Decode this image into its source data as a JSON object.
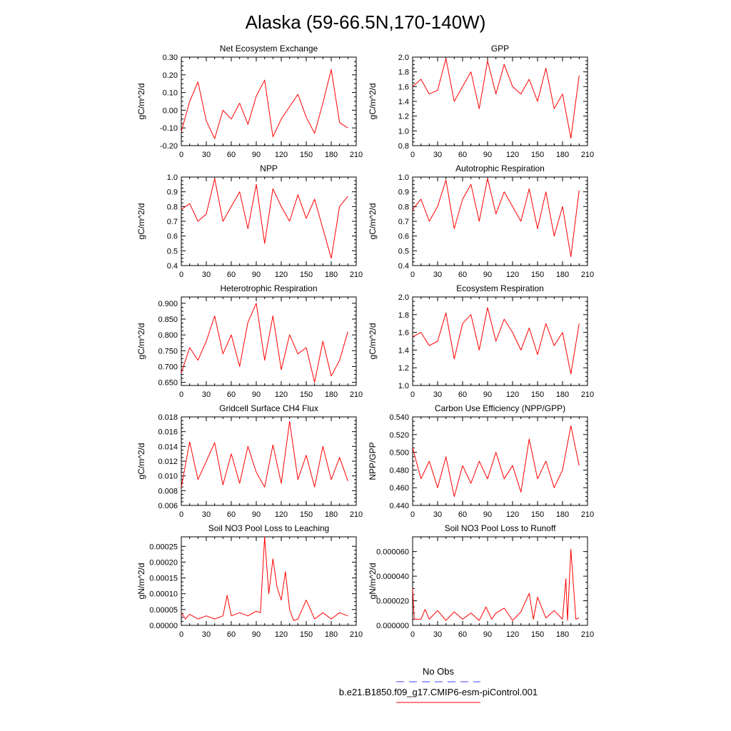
{
  "page_title": "Alaska (59-66.5N,170-140W)",
  "colors": {
    "model": "#ff0000",
    "obs": "#4040ff",
    "axis": "#000000"
  },
  "legend": {
    "obs_label": "No Obs",
    "model_label": "b.e21.B1850.f09_g17.CMIP6-esm-piControl.001"
  },
  "chart_data": [
    {
      "id": "nee",
      "type": "line",
      "title": "Net Ecosystem Exchange",
      "ylabel": "gC/m^2/d",
      "xlim": [
        0,
        210
      ],
      "xticks": [
        "0",
        "30",
        "60",
        "90",
        "120",
        "150",
        "180",
        "210"
      ],
      "ylim": [
        -0.2,
        0.3
      ],
      "yticks": [
        "-0.20",
        "-0.10",
        "0.00",
        "0.10",
        "0.20",
        "0.30"
      ],
      "x": [
        0,
        10,
        20,
        30,
        40,
        50,
        60,
        70,
        80,
        90,
        100,
        110,
        120,
        130,
        140,
        150,
        160,
        170,
        180,
        190,
        200
      ],
      "series": [
        {
          "values": [
            -0.12,
            0.05,
            0.16,
            -0.06,
            -0.16,
            0.0,
            -0.05,
            0.04,
            -0.08,
            0.08,
            0.17,
            -0.15,
            -0.05,
            0.02,
            0.09,
            -0.04,
            -0.13,
            0.04,
            0.23,
            -0.07,
            -0.1
          ]
        }
      ]
    },
    {
      "id": "gpp",
      "type": "line",
      "title": "GPP",
      "ylabel": "gC/m^2/d",
      "xlim": [
        0,
        210
      ],
      "xticks": [
        "0",
        "30",
        "60",
        "90",
        "120",
        "150",
        "180",
        "210"
      ],
      "ylim": [
        0.8,
        2.0
      ],
      "yticks": [
        "0.8",
        "1.0",
        "1.2",
        "1.4",
        "1.6",
        "1.8",
        "2.0"
      ],
      "x": [
        0,
        10,
        20,
        30,
        40,
        50,
        60,
        70,
        80,
        90,
        100,
        110,
        120,
        130,
        140,
        150,
        160,
        170,
        180,
        190,
        200
      ],
      "series": [
        {
          "values": [
            1.6,
            1.7,
            1.5,
            1.55,
            1.98,
            1.4,
            1.6,
            1.8,
            1.3,
            1.95,
            1.5,
            1.9,
            1.6,
            1.5,
            1.7,
            1.4,
            1.85,
            1.3,
            1.5,
            0.9,
            1.75
          ]
        }
      ]
    },
    {
      "id": "npp",
      "type": "line",
      "title": "NPP",
      "ylabel": "gC/m^2/d",
      "xlim": [
        0,
        210
      ],
      "xticks": [
        "0",
        "30",
        "60",
        "90",
        "120",
        "150",
        "180",
        "210"
      ],
      "ylim": [
        0.4,
        1.0
      ],
      "yticks": [
        "0.4",
        "0.5",
        "0.6",
        "0.7",
        "0.8",
        "0.9",
        "1.0"
      ],
      "x": [
        0,
        10,
        20,
        30,
        40,
        50,
        60,
        70,
        80,
        90,
        100,
        110,
        120,
        130,
        140,
        150,
        160,
        170,
        180,
        190,
        200
      ],
      "series": [
        {
          "values": [
            0.78,
            0.82,
            0.7,
            0.75,
            0.99,
            0.7,
            0.8,
            0.9,
            0.65,
            0.95,
            0.55,
            0.92,
            0.8,
            0.7,
            0.88,
            0.72,
            0.85,
            0.65,
            0.45,
            0.8,
            0.87
          ]
        }
      ]
    },
    {
      "id": "ar",
      "type": "line",
      "title": "Autotrophic Respiration",
      "ylabel": "gC/m^2/d",
      "xlim": [
        0,
        210
      ],
      "xticks": [
        "0",
        "30",
        "60",
        "90",
        "120",
        "150",
        "180",
        "210"
      ],
      "ylim": [
        0.4,
        1.0
      ],
      "yticks": [
        "0.4",
        "0.5",
        "0.6",
        "0.7",
        "0.8",
        "0.9",
        "1.0"
      ],
      "x": [
        0,
        10,
        20,
        30,
        40,
        50,
        60,
        70,
        80,
        90,
        100,
        110,
        120,
        130,
        140,
        150,
        160,
        170,
        180,
        190,
        200
      ],
      "series": [
        {
          "values": [
            0.78,
            0.85,
            0.7,
            0.8,
            0.98,
            0.65,
            0.85,
            0.95,
            0.7,
            0.99,
            0.75,
            0.9,
            0.8,
            0.7,
            0.92,
            0.65,
            0.9,
            0.6,
            0.8,
            0.46,
            0.91
          ]
        }
      ]
    },
    {
      "id": "hr",
      "type": "line",
      "title": "Heterotrophic Respiration",
      "ylabel": "gC/m^2/d",
      "xlim": [
        0,
        210
      ],
      "xticks": [
        "0",
        "30",
        "60",
        "90",
        "120",
        "150",
        "180",
        "210"
      ],
      "ylim": [
        0.64,
        0.92
      ],
      "yticks": [
        "0.650",
        "0.700",
        "0.750",
        "0.800",
        "0.850",
        "0.900"
      ],
      "x": [
        0,
        10,
        20,
        30,
        40,
        50,
        60,
        70,
        80,
        90,
        100,
        110,
        120,
        130,
        140,
        150,
        160,
        170,
        180,
        190,
        200
      ],
      "series": [
        {
          "values": [
            0.68,
            0.76,
            0.72,
            0.78,
            0.86,
            0.74,
            0.8,
            0.7,
            0.84,
            0.9,
            0.72,
            0.86,
            0.69,
            0.8,
            0.74,
            0.76,
            0.65,
            0.78,
            0.67,
            0.72,
            0.81
          ]
        }
      ]
    },
    {
      "id": "er",
      "type": "line",
      "title": "Ecosystem Respiration",
      "ylabel": "gC/m^2/d",
      "xlim": [
        0,
        210
      ],
      "xticks": [
        "0",
        "30",
        "60",
        "90",
        "120",
        "150",
        "180",
        "210"
      ],
      "ylim": [
        1.0,
        2.0
      ],
      "yticks": [
        "1.0",
        "1.2",
        "1.4",
        "1.6",
        "1.8",
        "2.0"
      ],
      "x": [
        0,
        10,
        20,
        30,
        40,
        50,
        60,
        70,
        80,
        90,
        100,
        110,
        120,
        130,
        140,
        150,
        160,
        170,
        180,
        190,
        200
      ],
      "series": [
        {
          "values": [
            1.55,
            1.6,
            1.45,
            1.5,
            1.82,
            1.3,
            1.7,
            1.8,
            1.4,
            1.88,
            1.5,
            1.75,
            1.6,
            1.4,
            1.65,
            1.35,
            1.7,
            1.45,
            1.6,
            1.13,
            1.7
          ]
        }
      ]
    },
    {
      "id": "ch4",
      "type": "line",
      "title": "Gridcell Surface CH4 Flux",
      "ylabel": "gC/m^2/d",
      "xlim": [
        0,
        210
      ],
      "xticks": [
        "0",
        "30",
        "60",
        "90",
        "120",
        "150",
        "180",
        "210"
      ],
      "ylim": [
        0.006,
        0.018
      ],
      "yticks": [
        "0.006",
        "0.008",
        "0.010",
        "0.012",
        "0.014",
        "0.016",
        "0.018"
      ],
      "x": [
        0,
        10,
        20,
        30,
        40,
        50,
        60,
        70,
        80,
        90,
        100,
        110,
        120,
        130,
        140,
        150,
        160,
        170,
        180,
        190,
        200
      ],
      "series": [
        {
          "values": [
            0.0085,
            0.0146,
            0.0095,
            0.012,
            0.0145,
            0.0088,
            0.013,
            0.009,
            0.014,
            0.0105,
            0.0085,
            0.0142,
            0.009,
            0.0174,
            0.0095,
            0.0128,
            0.0085,
            0.014,
            0.0095,
            0.0125,
            0.0093
          ]
        }
      ]
    },
    {
      "id": "cue",
      "type": "line",
      "title": "Carbon Use Efficiency (NPP/GPP)",
      "ylabel": "NPP/GPP",
      "xlim": [
        0,
        210
      ],
      "xticks": [
        "0",
        "30",
        "60",
        "90",
        "120",
        "150",
        "180",
        "210"
      ],
      "ylim": [
        0.44,
        0.54
      ],
      "yticks": [
        "0.440",
        "0.460",
        "0.480",
        "0.500",
        "0.520",
        "0.540"
      ],
      "x": [
        0,
        10,
        20,
        30,
        40,
        50,
        60,
        70,
        80,
        90,
        100,
        110,
        120,
        130,
        140,
        150,
        160,
        170,
        180,
        190,
        200
      ],
      "series": [
        {
          "values": [
            0.505,
            0.47,
            0.49,
            0.46,
            0.495,
            0.45,
            0.485,
            0.465,
            0.49,
            0.47,
            0.5,
            0.47,
            0.485,
            0.455,
            0.515,
            0.47,
            0.49,
            0.46,
            0.48,
            0.53,
            0.485
          ]
        }
      ]
    },
    {
      "id": "leach",
      "type": "line",
      "title": "Soil NO3 Pool Loss to Leaching",
      "ylabel": "gN/m^2/d",
      "xlim": [
        0,
        210
      ],
      "xticks": [
        "0",
        "30",
        "60",
        "90",
        "120",
        "150",
        "180",
        "210"
      ],
      "ylim": [
        0.0,
        0.00028
      ],
      "yticks": [
        "0.00000",
        "0.00005",
        "0.00010",
        "0.00015",
        "0.00020",
        "0.00025"
      ],
      "x": [
        0,
        5,
        10,
        20,
        30,
        40,
        50,
        55,
        60,
        70,
        80,
        90,
        95,
        100,
        105,
        110,
        115,
        120,
        125,
        130,
        135,
        140,
        150,
        160,
        170,
        180,
        190,
        200
      ],
      "series": [
        {
          "values": [
            4e-05,
            2e-05,
            3.5e-05,
            2e-05,
            3e-05,
            2e-05,
            3e-05,
            9.5e-05,
            3e-05,
            4e-05,
            3e-05,
            4.5e-05,
            4e-05,
            0.00028,
            0.0001,
            0.00021,
            0.00012,
            8e-05,
            0.00017,
            5e-05,
            1.5e-05,
            2e-05,
            8e-05,
            2e-05,
            4e-05,
            2e-05,
            4e-05,
            3e-05
          ]
        }
      ]
    },
    {
      "id": "runoff",
      "type": "line",
      "title": "Soil NO3 Pool Loss to Runoff",
      "ylabel": "gN/m^2/d",
      "xlim": [
        0,
        210
      ],
      "xticks": [
        "0",
        "30",
        "60",
        "90",
        "120",
        "150",
        "180",
        "210"
      ],
      "ylim": [
        0.0,
        7.2e-05
      ],
      "yticks": [
        "0.000000",
        "0.000020",
        "0.000040",
        "0.000060"
      ],
      "x": [
        0,
        2,
        10,
        15,
        20,
        30,
        40,
        50,
        60,
        70,
        80,
        88,
        95,
        100,
        110,
        120,
        130,
        140,
        145,
        150,
        160,
        170,
        180,
        184,
        186,
        190,
        196,
        200
      ],
      "series": [
        {
          "values": [
            3e-05,
            5e-06,
            5e-06,
            1.3e-05,
            5e-06,
            1.2e-05,
            4e-06,
            1.1e-05,
            5e-06,
            1e-05,
            4e-06,
            1.5e-05,
            5e-06,
            1e-05,
            1.4e-05,
            4e-06,
            1.1e-05,
            2.6e-05,
            5e-06,
            2.3e-05,
            6e-06,
            1.2e-05,
            5e-06,
            3.8e-05,
            4e-06,
            6.2e-05,
            5e-06,
            6e-06
          ]
        }
      ]
    }
  ]
}
